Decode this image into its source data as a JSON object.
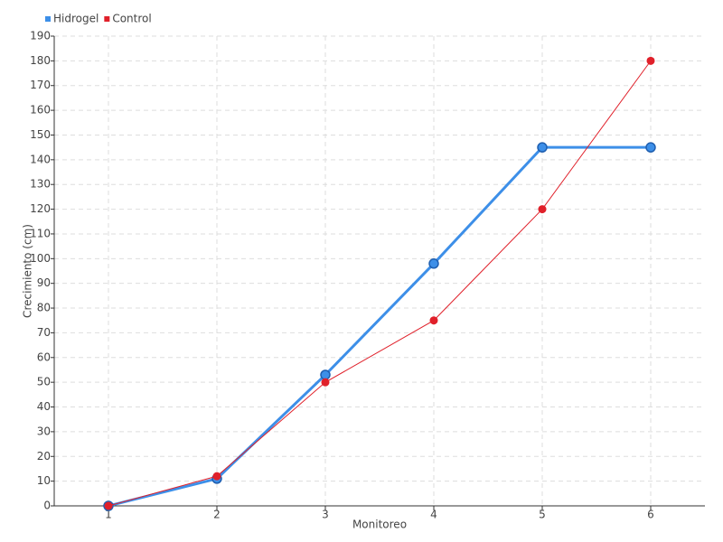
{
  "chart_data": {
    "type": "line",
    "categories": [
      "1",
      "2",
      "3",
      "4",
      "5",
      "6"
    ],
    "series": [
      {
        "name": "Hidrogel",
        "color": "#3d8fe8",
        "values": [
          0,
          11,
          53,
          98,
          145,
          145
        ]
      },
      {
        "name": "Control",
        "color": "#e0202a",
        "values": [
          0,
          12,
          50,
          75,
          120,
          180
        ]
      }
    ],
    "xlabel": "Monitoreo",
    "ylabel": "Crecimiento (cm)",
    "ylim": [
      0,
      190
    ],
    "yticks": [
      0,
      10,
      20,
      30,
      40,
      50,
      60,
      70,
      80,
      90,
      100,
      110,
      120,
      130,
      140,
      150,
      160,
      170,
      180,
      190
    ],
    "grid": true,
    "legend": "top-left"
  }
}
